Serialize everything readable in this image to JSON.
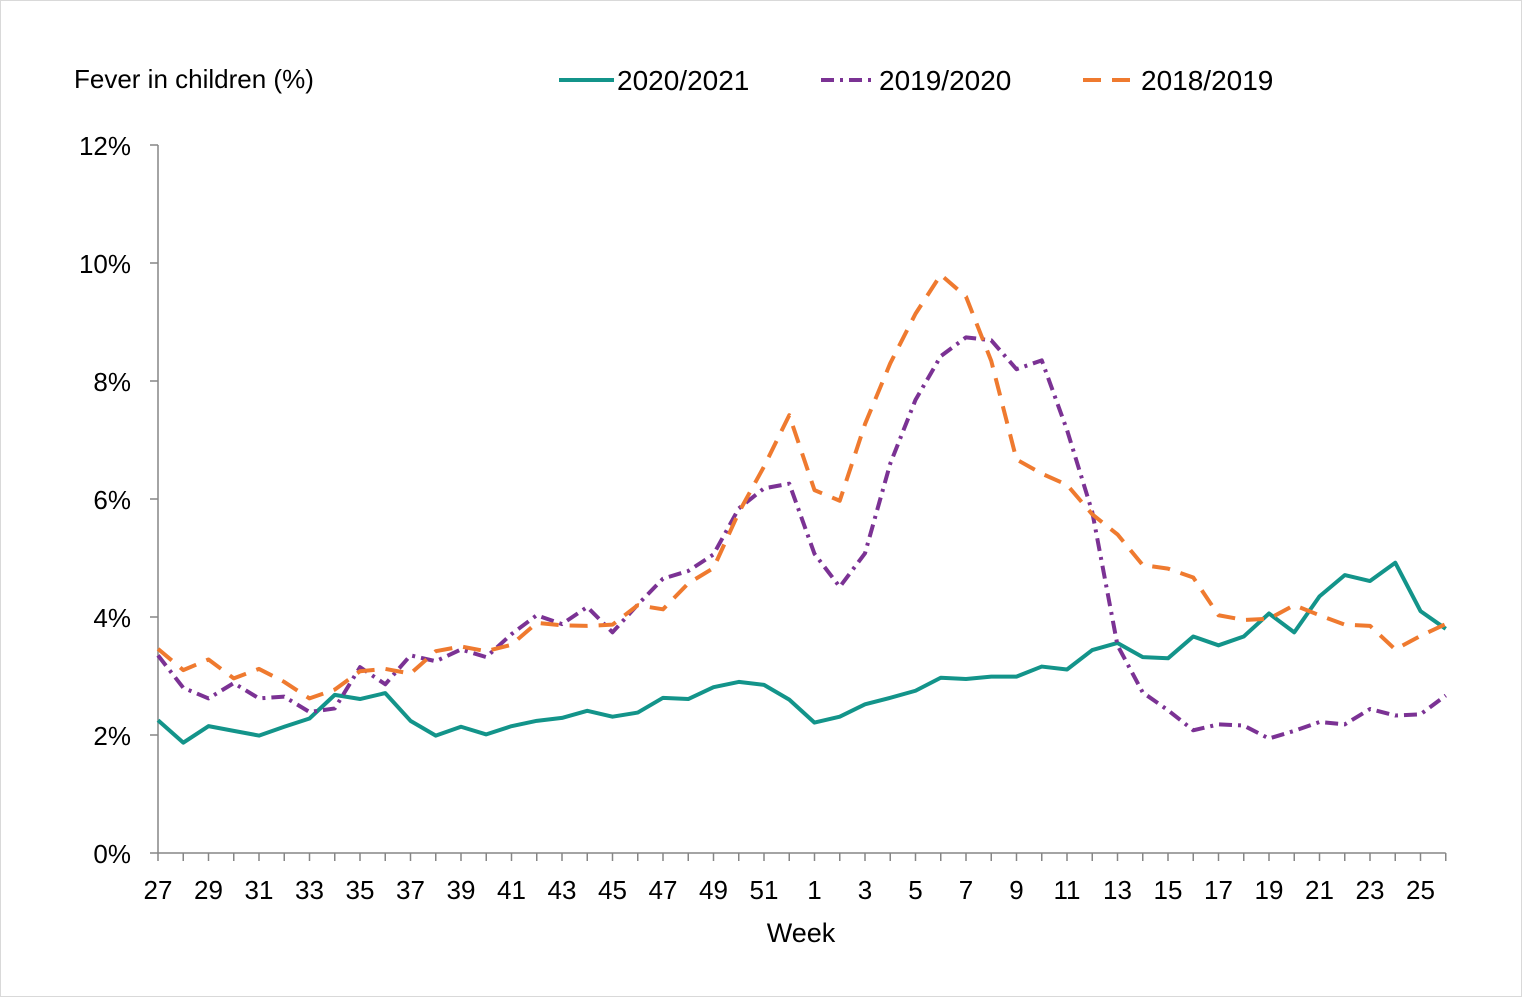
{
  "chart_data": {
    "type": "line",
    "ylabel": "Fever in children (%)",
    "xlabel": "Week",
    "ylim": [
      0,
      12
    ],
    "ytick_step": 2,
    "y_unit": "%",
    "grid": false,
    "legend_position": "top",
    "x": [
      27,
      28,
      29,
      30,
      31,
      32,
      33,
      34,
      35,
      36,
      37,
      38,
      39,
      40,
      41,
      42,
      43,
      44,
      45,
      46,
      47,
      48,
      49,
      50,
      51,
      52,
      1,
      2,
      3,
      4,
      5,
      6,
      7,
      8,
      9,
      10,
      11,
      12,
      13,
      14,
      15,
      16,
      17,
      18,
      19,
      20,
      21,
      22,
      23,
      24,
      25,
      26
    ],
    "x_tick_labels": [
      "27",
      "29",
      "31",
      "33",
      "35",
      "37",
      "39",
      "41",
      "43",
      "45",
      "47",
      "49",
      "51",
      "1",
      "3",
      "5",
      "7",
      "9",
      "11",
      "13",
      "15",
      "17",
      "19",
      "21",
      "23",
      "25"
    ],
    "series": [
      {
        "name": "2020/2021",
        "color": "#13948a",
        "dash": "solid",
        "values": [
          2.25,
          1.87,
          2.15,
          2.07,
          1.99,
          2.14,
          2.28,
          2.68,
          2.61,
          2.71,
          2.24,
          1.99,
          2.14,
          2.01,
          2.15,
          2.24,
          2.29,
          2.41,
          2.31,
          2.38,
          2.63,
          2.61,
          2.81,
          2.9,
          2.85,
          2.6,
          2.21,
          2.31,
          2.52,
          2.63,
          2.75,
          2.97,
          2.95,
          2.99,
          2.99,
          3.16,
          3.11,
          3.44,
          3.56,
          3.32,
          3.3,
          3.67,
          3.52,
          3.67,
          4.06,
          3.74,
          4.35,
          4.71,
          4.61,
          4.92,
          4.1,
          3.8
        ]
      },
      {
        "name": "2019/2020",
        "color": "#7b3294",
        "dash": "dash-dot",
        "values": [
          3.35,
          2.8,
          2.62,
          2.88,
          2.62,
          2.65,
          2.39,
          2.45,
          3.15,
          2.86,
          3.35,
          3.25,
          3.45,
          3.32,
          3.71,
          4.03,
          3.88,
          4.17,
          3.74,
          4.21,
          4.65,
          4.78,
          5.06,
          5.84,
          6.18,
          6.26,
          5.07,
          4.51,
          5.08,
          6.6,
          7.68,
          8.42,
          8.74,
          8.69,
          8.2,
          8.35,
          7.17,
          5.78,
          3.52,
          2.72,
          2.42,
          2.08,
          2.18,
          2.16,
          1.94,
          2.07,
          2.22,
          2.18,
          2.44,
          2.33,
          2.35,
          2.67
        ]
      },
      {
        "name": "2018/2019",
        "color": "#ef7a2f",
        "dash": "dash",
        "values": [
          3.46,
          3.1,
          3.28,
          2.96,
          3.12,
          2.9,
          2.62,
          2.77,
          3.08,
          3.12,
          3.04,
          3.42,
          3.5,
          3.42,
          3.53,
          3.9,
          3.86,
          3.85,
          3.87,
          4.2,
          4.13,
          4.57,
          4.83,
          5.77,
          6.55,
          7.42,
          6.15,
          5.97,
          7.27,
          8.3,
          9.14,
          9.8,
          9.43,
          8.34,
          6.67,
          6.43,
          6.24,
          5.74,
          5.4,
          4.88,
          4.82,
          4.67,
          4.03,
          3.95,
          3.97,
          4.2,
          4.03,
          3.87,
          3.85,
          3.45,
          3.68,
          3.88
        ]
      }
    ]
  }
}
